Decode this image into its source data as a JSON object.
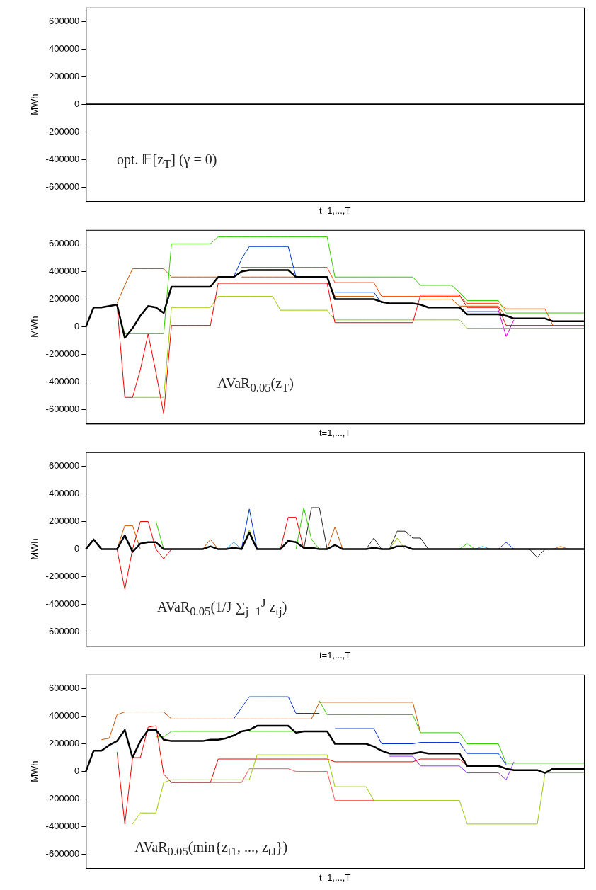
{
  "chart_data": [
    {
      "type": "line",
      "xlabel": "t=1,...,T",
      "ylabel": "MWh",
      "ylim": [
        -700000,
        700000
      ],
      "yticks": [
        -600000,
        -400000,
        -200000,
        0,
        200000,
        400000,
        600000
      ],
      "tick_labels": "y",
      "annotations": [
        "opt. 𝔼[z$_{T}$] (γ = 0)"
      ],
      "categories": [
        null,
        null,
        null,
        null,
        null,
        null,
        null,
        null,
        null,
        null,
        null,
        null,
        null,
        null,
        null,
        null,
        null,
        null,
        null,
        null,
        null,
        null,
        null,
        null,
        null,
        null,
        null,
        null,
        null,
        null,
        null,
        null,
        null,
        null,
        null,
        null,
        null,
        null,
        null,
        null,
        null,
        null,
        null,
        null,
        null,
        null,
        null,
        null,
        null,
        null,
        null,
        null,
        null,
        null,
        null,
        null,
        null,
        null,
        null,
        null,
        null,
        null,
        null,
        null,
        null
      ],
      "series": [
        {
          "color": "#000000",
          "values": [
            0,
            0,
            0,
            0,
            0,
            0,
            0,
            0,
            0,
            0,
            0,
            0,
            0,
            0,
            0,
            0,
            0,
            0,
            0,
            0,
            0,
            0,
            0,
            0,
            0,
            0,
            0,
            0,
            0,
            0,
            0,
            0,
            0,
            0,
            0,
            0,
            0,
            0,
            0,
            0,
            0,
            0,
            0,
            0,
            0,
            0,
            0,
            0,
            0,
            0,
            0,
            0,
            0,
            0,
            0,
            0,
            0,
            0,
            0,
            0,
            0,
            0,
            0,
            0,
            0
          ]
        }
      ]
    },
    {
      "type": "line",
      "xlabel": "t=1,...,T",
      "ylabel": "MWh",
      "ylim": [
        -700000,
        700000
      ],
      "yticks": [
        -600000,
        -400000,
        -200000,
        0,
        200000,
        400000,
        600000
      ],
      "tick_labels": "y",
      "annotations": [
        "AVaR$_{0.05}$(z$_{T}$)"
      ],
      "categories": [
        null,
        null,
        null,
        null,
        null,
        null,
        null,
        null,
        null,
        null,
        null,
        null,
        null,
        null,
        null,
        null,
        null,
        null,
        null,
        null,
        null,
        null,
        null,
        null,
        null,
        null,
        null,
        null,
        null,
        null,
        null,
        null,
        null,
        null,
        null,
        null,
        null,
        null,
        null,
        null,
        null,
        null,
        null,
        null,
        null,
        null,
        null,
        null,
        null,
        null,
        null,
        null,
        null,
        null,
        null,
        null,
        null,
        null,
        null,
        null,
        null,
        null,
        null,
        null,
        null
      ],
      "series": [
        {
          "color": "#000000",
          "values": [
            0,
            140000,
            140000,
            150000,
            160000,
            -80000,
            -10000,
            80000,
            150000,
            140000,
            100000,
            290000,
            290000,
            290000,
            290000,
            290000,
            290000,
            360000,
            360000,
            360000,
            400000,
            410000,
            410000,
            410000,
            410000,
            410000,
            410000,
            360000,
            360000,
            360000,
            360000,
            360000,
            200000,
            200000,
            200000,
            200000,
            200000,
            200000,
            180000,
            170000,
            170000,
            170000,
            170000,
            160000,
            140000,
            140000,
            140000,
            140000,
            140000,
            90000,
            90000,
            90000,
            90000,
            90000,
            80000,
            60000,
            60000,
            60000,
            60000,
            60000,
            40000,
            40000,
            40000,
            40000,
            40000
          ]
        },
        {
          "color": "#33cc00",
          "values": [
            null,
            null,
            null,
            null,
            150000,
            -50000,
            -50000,
            -50000,
            -50000,
            -50000,
            -50000,
            600000,
            600000,
            600000,
            600000,
            600000,
            600000,
            650000,
            650000,
            650000,
            650000,
            650000,
            650000,
            650000,
            650000,
            650000,
            650000,
            650000,
            650000,
            650000,
            650000,
            650000,
            360000,
            360000,
            360000,
            360000,
            360000,
            360000,
            360000,
            360000,
            360000,
            360000,
            360000,
            300000,
            300000,
            300000,
            300000,
            300000,
            250000,
            190000,
            190000,
            190000,
            190000,
            190000,
            100000,
            100000,
            100000,
            100000,
            100000,
            100000,
            100000,
            100000,
            100000,
            100000,
            100000
          ]
        },
        {
          "color": "#cc5500",
          "values": [
            null,
            null,
            null,
            null,
            170000,
            300000,
            420000,
            420000,
            420000,
            420000,
            420000,
            360000,
            360000,
            360000,
            360000,
            360000,
            360000,
            360000,
            null,
            null,
            360000,
            360000,
            360000,
            360000,
            360000,
            360000,
            360000,
            360000,
            null,
            null,
            null,
            360000,
            220000,
            220000,
            220000,
            220000,
            220000,
            220000,
            null,
            null,
            null,
            null,
            null,
            200000,
            200000,
            200000,
            200000,
            200000,
            150000,
            150000,
            150000,
            150000,
            150000,
            150000,
            70000,
            null,
            null,
            null,
            null,
            null,
            null,
            null,
            null,
            null,
            null
          ]
        },
        {
          "color": "#0033cc",
          "values": [
            null,
            null,
            null,
            null,
            null,
            null,
            null,
            null,
            null,
            null,
            null,
            null,
            null,
            null,
            null,
            null,
            null,
            null,
            null,
            360000,
            490000,
            580000,
            580000,
            580000,
            580000,
            580000,
            580000,
            360000,
            null,
            null,
            null,
            null,
            250000,
            250000,
            250000,
            250000,
            250000,
            250000,
            170000,
            null,
            null,
            null,
            null,
            null,
            null,
            null,
            null,
            null,
            null,
            110000,
            110000,
            110000,
            110000,
            110000,
            null,
            null,
            null,
            null,
            null,
            null,
            null,
            null,
            null,
            null,
            null
          ]
        },
        {
          "color": "#ee0000",
          "values": [
            null,
            null,
            null,
            null,
            160000,
            -510000,
            -510000,
            -310000,
            -50000,
            -330000,
            -630000,
            10000,
            10000,
            10000,
            10000,
            10000,
            10000,
            315000,
            315000,
            315000,
            315000,
            315000,
            315000,
            315000,
            315000,
            315000,
            315000,
            315000,
            315000,
            315000,
            315000,
            315000,
            30000,
            30000,
            30000,
            30000,
            30000,
            30000,
            30000,
            30000,
            30000,
            30000,
            30000,
            230000,
            230000,
            230000,
            230000,
            230000,
            230000,
            140000,
            140000,
            140000,
            140000,
            140000,
            10000,
            10000,
            10000,
            10000,
            10000,
            10000,
            10000,
            10000,
            10000,
            10000,
            10000
          ]
        },
        {
          "color": "#ff4400",
          "values": [
            null,
            null,
            null,
            null,
            null,
            null,
            null,
            null,
            null,
            null,
            null,
            null,
            null,
            null,
            null,
            null,
            null,
            null,
            null,
            null,
            430000,
            430000,
            430000,
            430000,
            430000,
            430000,
            430000,
            430000,
            430000,
            430000,
            430000,
            430000,
            320000,
            320000,
            320000,
            320000,
            320000,
            320000,
            220000,
            220000,
            220000,
            220000,
            220000,
            220000,
            220000,
            220000,
            220000,
            220000,
            220000,
            170000,
            170000,
            170000,
            170000,
            170000,
            130000,
            130000,
            130000,
            130000,
            130000,
            130000,
            10000,
            null,
            null,
            null,
            null
          ]
        },
        {
          "color": "#99cc00",
          "values": [
            null,
            null,
            null,
            null,
            null,
            null,
            -510000,
            -510000,
            -510000,
            -510000,
            -510000,
            140000,
            140000,
            140000,
            140000,
            140000,
            140000,
            220000,
            220000,
            220000,
            220000,
            220000,
            220000,
            220000,
            220000,
            120000,
            120000,
            120000,
            120000,
            120000,
            120000,
            120000,
            50000,
            50000,
            50000,
            50000,
            50000,
            50000,
            50000,
            50000,
            50000,
            50000,
            50000,
            50000,
            50000,
            50000,
            50000,
            50000,
            50000,
            -10000,
            -10000,
            -10000,
            -10000,
            -10000,
            -10000,
            -10000,
            -10000,
            -10000,
            -10000,
            -10000,
            -10000,
            -10000,
            -10000,
            -10000,
            -10000
          ]
        },
        {
          "color": "#cc00cc",
          "values": [
            null,
            null,
            null,
            null,
            null,
            null,
            null,
            null,
            null,
            null,
            null,
            null,
            null,
            null,
            null,
            null,
            null,
            null,
            null,
            null,
            null,
            null,
            null,
            null,
            null,
            null,
            null,
            null,
            null,
            null,
            null,
            null,
            null,
            null,
            null,
            null,
            null,
            null,
            null,
            null,
            null,
            null,
            null,
            null,
            null,
            null,
            null,
            null,
            null,
            null,
            null,
            null,
            null,
            120000,
            -70000,
            50000,
            null,
            null,
            null,
            null,
            null,
            null,
            null,
            null,
            null
          ]
        }
      ]
    },
    {
      "type": "line",
      "xlabel": "t=1,...,T",
      "ylabel": "MWh",
      "ylim": [
        -700000,
        700000
      ],
      "yticks": [
        -600000,
        -400000,
        -200000,
        0,
        200000,
        400000,
        600000
      ],
      "tick_labels": "y",
      "annotations": [
        "AVaR$_{0.05}$(1/J ∑$_{j=1}$$^{J}$ z$_{tj}$)"
      ],
      "categories": [
        null,
        null,
        null,
        null,
        null,
        null,
        null,
        null,
        null,
        null,
        null,
        null,
        null,
        null,
        null,
        null,
        null,
        null,
        null,
        null,
        null,
        null,
        null,
        null,
        null,
        null,
        null,
        null,
        null,
        null,
        null,
        null,
        null,
        null,
        null,
        null,
        null,
        null,
        null,
        null,
        null,
        null,
        null,
        null,
        null,
        null,
        null,
        null,
        null,
        null,
        null,
        null,
        null,
        null,
        null,
        null,
        null,
        null,
        null,
        null,
        null,
        null,
        null,
        null,
        null
      ],
      "series": [
        {
          "color": "#000000",
          "values": [
            0,
            70000,
            0,
            0,
            0,
            100000,
            -20000,
            40000,
            50000,
            50000,
            0,
            0,
            0,
            0,
            0,
            0,
            20000,
            0,
            0,
            10000,
            0,
            120000,
            0,
            0,
            0,
            0,
            60000,
            50000,
            10000,
            10000,
            0,
            0,
            30000,
            0,
            0,
            0,
            0,
            10000,
            0,
            0,
            20000,
            20000,
            0,
            0,
            0,
            0,
            0,
            0,
            0,
            0,
            0,
            0,
            0,
            0,
            0,
            0,
            0,
            0,
            0,
            0,
            0,
            0,
            0,
            0,
            0
          ]
        },
        {
          "color": "#cc5500",
          "values": [
            null,
            null,
            null,
            null,
            0,
            170000,
            170000,
            0,
            null,
            null,
            null,
            null,
            null,
            null,
            null,
            0,
            70000,
            0,
            null,
            null,
            null,
            null,
            null,
            null,
            null,
            null,
            null,
            null,
            null,
            null,
            null,
            0,
            160000,
            0,
            null,
            null,
            null,
            null,
            null,
            null,
            null,
            null,
            null,
            null,
            null,
            null,
            null,
            null,
            null,
            null,
            null,
            null,
            null,
            null,
            null,
            null,
            null,
            null,
            null,
            null,
            null,
            null,
            null,
            null,
            null
          ]
        },
        {
          "color": "#ee0000",
          "values": [
            null,
            null,
            null,
            null,
            0,
            -290000,
            0,
            200000,
            200000,
            0,
            -70000,
            0,
            null,
            null,
            null,
            null,
            null,
            null,
            null,
            null,
            null,
            null,
            null,
            null,
            null,
            0,
            230000,
            230000,
            0,
            null,
            null,
            null,
            null,
            null,
            null,
            null,
            null,
            null,
            null,
            null,
            null,
            null,
            null,
            null,
            null,
            null,
            null,
            null,
            null,
            null,
            null,
            null,
            null,
            null,
            null,
            null,
            null,
            null,
            null,
            null,
            null,
            null,
            null,
            null,
            null
          ]
        },
        {
          "color": "#33cc00",
          "values": [
            null,
            null,
            null,
            null,
            null,
            null,
            null,
            null,
            null,
            200000,
            0,
            null,
            null,
            null,
            null,
            null,
            null,
            null,
            null,
            null,
            null,
            null,
            null,
            null,
            null,
            null,
            null,
            0,
            300000,
            70000,
            0,
            null,
            null,
            null,
            null,
            null,
            null,
            null,
            null,
            null,
            null,
            null,
            null,
            null,
            null,
            null,
            null,
            null,
            0,
            40000,
            0,
            null,
            null,
            null,
            null,
            null,
            null,
            null,
            null,
            null,
            null,
            null,
            null,
            null,
            null
          ]
        },
        {
          "color": "#222222",
          "values": [
            null,
            null,
            null,
            null,
            null,
            null,
            null,
            null,
            null,
            null,
            null,
            null,
            null,
            null,
            null,
            null,
            null,
            null,
            null,
            null,
            null,
            null,
            null,
            null,
            null,
            null,
            null,
            null,
            0,
            300000,
            300000,
            0,
            null,
            null,
            null,
            null,
            0,
            80000,
            0,
            0,
            130000,
            130000,
            80000,
            80000,
            0,
            null,
            null,
            null,
            null,
            null,
            null,
            null,
            null,
            null,
            null,
            null,
            null,
            0,
            -60000,
            0,
            null,
            null,
            null,
            null,
            null
          ]
        },
        {
          "color": "#0033cc",
          "values": [
            null,
            null,
            null,
            null,
            null,
            null,
            null,
            null,
            null,
            null,
            null,
            null,
            null,
            null,
            null,
            null,
            null,
            null,
            null,
            null,
            0,
            290000,
            0,
            null,
            null,
            null,
            null,
            null,
            null,
            null,
            null,
            null,
            null,
            null,
            null,
            null,
            null,
            null,
            null,
            null,
            null,
            null,
            null,
            null,
            null,
            null,
            null,
            null,
            null,
            null,
            null,
            null,
            null,
            0,
            50000,
            0,
            null,
            null,
            null,
            null,
            null,
            null,
            null,
            null,
            null
          ]
        },
        {
          "color": "#33aaff",
          "values": [
            null,
            null,
            null,
            null,
            null,
            null,
            null,
            null,
            null,
            null,
            null,
            null,
            null,
            null,
            null,
            null,
            null,
            null,
            0,
            50000,
            0,
            null,
            null,
            null,
            null,
            null,
            null,
            null,
            null,
            null,
            null,
            null,
            null,
            null,
            null,
            null,
            null,
            null,
            null,
            null,
            null,
            null,
            null,
            null,
            null,
            null,
            null,
            null,
            null,
            null,
            0,
            20000,
            0,
            null,
            null,
            null,
            null,
            null,
            null,
            null,
            null,
            null,
            null,
            null,
            null
          ]
        },
        {
          "color": "#99cc00",
          "values": [
            null,
            null,
            null,
            null,
            null,
            null,
            null,
            null,
            null,
            null,
            null,
            null,
            null,
            null,
            null,
            null,
            null,
            null,
            null,
            null,
            0,
            140000,
            0,
            null,
            null,
            null,
            null,
            null,
            null,
            null,
            null,
            null,
            null,
            null,
            null,
            null,
            null,
            null,
            null,
            0,
            80000,
            0,
            null,
            null,
            null,
            null,
            null,
            null,
            null,
            null,
            null,
            null,
            null,
            null,
            null,
            null,
            null,
            null,
            null,
            null,
            null,
            null,
            null,
            null,
            null
          ]
        },
        {
          "color": "#ff6600",
          "values": [
            null,
            null,
            null,
            null,
            null,
            null,
            null,
            null,
            null,
            null,
            null,
            null,
            null,
            null,
            null,
            null,
            null,
            null,
            null,
            null,
            null,
            null,
            null,
            null,
            null,
            null,
            null,
            null,
            null,
            null,
            null,
            null,
            null,
            null,
            null,
            null,
            null,
            null,
            null,
            null,
            null,
            null,
            null,
            null,
            null,
            null,
            null,
            null,
            null,
            null,
            null,
            null,
            null,
            null,
            null,
            null,
            null,
            null,
            null,
            null,
            0,
            20000,
            0,
            null,
            null
          ]
        }
      ]
    },
    {
      "type": "line",
      "xlabel": "t=1,...,T",
      "ylabel": "MWh",
      "ylim": [
        -700000,
        700000
      ],
      "yticks": [
        -600000,
        -400000,
        -200000,
        0,
        200000,
        400000,
        600000
      ],
      "tick_labels": "y",
      "annotations": [
        "AVaR$_{0.05}$(min{z$_{t1}$, ..., z$_{tJ}$})"
      ],
      "categories": [
        null,
        null,
        null,
        null,
        null,
        null,
        null,
        null,
        null,
        null,
        null,
        null,
        null,
        null,
        null,
        null,
        null,
        null,
        null,
        null,
        null,
        null,
        null,
        null,
        null,
        null,
        null,
        null,
        null,
        null,
        null,
        null,
        null,
        null,
        null,
        null,
        null,
        null,
        null,
        null,
        null,
        null,
        null,
        null,
        null,
        null,
        null,
        null,
        null,
        null,
        null,
        null,
        null,
        null,
        null,
        null,
        null,
        null,
        null,
        null,
        null,
        null,
        null,
        null,
        null
      ],
      "series": [
        {
          "color": "#000000",
          "values": [
            0,
            150000,
            150000,
            190000,
            220000,
            300000,
            100000,
            220000,
            300000,
            300000,
            230000,
            220000,
            220000,
            220000,
            220000,
            220000,
            230000,
            230000,
            240000,
            260000,
            290000,
            300000,
            330000,
            330000,
            330000,
            330000,
            330000,
            280000,
            290000,
            290000,
            290000,
            290000,
            200000,
            200000,
            200000,
            200000,
            200000,
            180000,
            150000,
            130000,
            130000,
            130000,
            130000,
            140000,
            130000,
            130000,
            130000,
            130000,
            130000,
            40000,
            40000,
            40000,
            40000,
            40000,
            20000,
            10000,
            10000,
            10000,
            10000,
            -10000,
            20000,
            20000,
            20000,
            20000,
            20000
          ]
        },
        {
          "color": "#cc5500",
          "values": [
            null,
            null,
            230000,
            240000,
            410000,
            430000,
            430000,
            430000,
            430000,
            430000,
            430000,
            380000,
            380000,
            380000,
            380000,
            380000,
            380000,
            380000,
            380000,
            380000,
            380000,
            380000,
            380000,
            380000,
            380000,
            380000,
            380000,
            380000,
            380000,
            380000,
            500000,
            500000,
            500000,
            500000,
            500000,
            500000,
            500000,
            500000,
            500000,
            500000,
            500000,
            500000,
            500000,
            280000,
            null,
            null,
            null,
            null,
            null,
            null,
            null,
            null,
            null,
            null,
            null,
            null,
            null,
            null,
            null,
            null,
            null,
            null,
            null,
            null,
            null
          ]
        },
        {
          "color": "#0033cc",
          "values": [
            null,
            null,
            null,
            null,
            null,
            null,
            null,
            null,
            null,
            null,
            null,
            null,
            null,
            null,
            null,
            null,
            null,
            null,
            null,
            380000,
            460000,
            540000,
            540000,
            540000,
            540000,
            540000,
            540000,
            420000,
            420000,
            420000,
            420000,
            null,
            310000,
            310000,
            310000,
            310000,
            310000,
            310000,
            200000,
            200000,
            200000,
            200000,
            200000,
            210000,
            210000,
            210000,
            210000,
            210000,
            210000,
            130000,
            130000,
            130000,
            130000,
            130000,
            50000,
            null,
            null,
            null,
            null,
            null,
            null,
            null,
            null,
            null,
            null
          ]
        },
        {
          "color": "#ee0000",
          "values": [
            null,
            null,
            null,
            null,
            140000,
            -380000,
            100000,
            100000,
            320000,
            330000,
            -20000,
            -80000,
            -80000,
            -80000,
            -80000,
            -80000,
            -80000,
            90000,
            90000,
            90000,
            90000,
            90000,
            90000,
            90000,
            90000,
            90000,
            90000,
            90000,
            90000,
            90000,
            90000,
            90000,
            70000,
            70000,
            70000,
            70000,
            70000,
            70000,
            70000,
            70000,
            70000,
            70000,
            70000,
            90000,
            90000,
            90000,
            90000,
            90000,
            90000,
            40000,
            null,
            null,
            null,
            null,
            null,
            null,
            null,
            null,
            null,
            null,
            null,
            null,
            null,
            null,
            null
          ]
        },
        {
          "color": "#ff5555",
          "values": [
            null,
            null,
            null,
            null,
            null,
            null,
            null,
            null,
            null,
            null,
            null,
            null,
            null,
            null,
            null,
            null,
            -80000,
            -80000,
            -80000,
            -80000,
            -80000,
            20000,
            20000,
            20000,
            20000,
            20000,
            20000,
            0,
            0,
            0,
            0,
            0,
            -210000,
            -210000,
            -210000,
            -210000,
            -210000,
            -210000,
            null,
            null,
            null,
            null,
            null,
            null,
            null,
            null,
            null,
            null,
            null,
            null,
            null,
            null,
            null,
            null,
            null,
            null,
            null,
            null,
            null,
            null,
            null,
            null,
            null,
            null,
            null
          ]
        },
        {
          "color": "#99cc00",
          "values": [
            null,
            null,
            null,
            null,
            null,
            null,
            -380000,
            -300000,
            -300000,
            -300000,
            -80000,
            -60000,
            -60000,
            -60000,
            -60000,
            -60000,
            -60000,
            -60000,
            -60000,
            -60000,
            -60000,
            -60000,
            120000,
            120000,
            120000,
            120000,
            120000,
            120000,
            120000,
            120000,
            120000,
            120000,
            -110000,
            -110000,
            -110000,
            -110000,
            -110000,
            -210000,
            -210000,
            -210000,
            -210000,
            -210000,
            -210000,
            -210000,
            -210000,
            -210000,
            -210000,
            -210000,
            -210000,
            -380000,
            -380000,
            -380000,
            -380000,
            -380000,
            -380000,
            -380000,
            -380000,
            -380000,
            -380000,
            -10000,
            -10000,
            -10000,
            -10000,
            -10000,
            -10000
          ]
        },
        {
          "color": "#33cc00",
          "values": [
            null,
            null,
            null,
            null,
            null,
            null,
            null,
            null,
            null,
            250000,
            250000,
            290000,
            290000,
            290000,
            290000,
            290000,
            290000,
            290000,
            290000,
            290000,
            null,
            290000,
            290000,
            290000,
            290000,
            290000,
            290000,
            290000,
            null,
            null,
            510000,
            410000,
            410000,
            410000,
            410000,
            410000,
            410000,
            410000,
            410000,
            410000,
            410000,
            410000,
            410000,
            280000,
            280000,
            280000,
            280000,
            280000,
            280000,
            200000,
            200000,
            200000,
            200000,
            200000,
            60000,
            60000,
            60000,
            60000,
            60000,
            60000,
            60000,
            60000,
            60000,
            60000,
            60000
          ]
        },
        {
          "color": "#9933ff",
          "values": [
            null,
            null,
            null,
            null,
            null,
            null,
            null,
            null,
            null,
            null,
            null,
            null,
            null,
            null,
            null,
            null,
            null,
            null,
            null,
            null,
            null,
            null,
            null,
            null,
            null,
            null,
            null,
            null,
            null,
            null,
            null,
            null,
            null,
            null,
            null,
            null,
            null,
            null,
            null,
            110000,
            110000,
            110000,
            110000,
            40000,
            40000,
            40000,
            40000,
            40000,
            40000,
            -10000,
            -10000,
            -10000,
            -10000,
            -10000,
            -60000,
            70000,
            null,
            null,
            null,
            null,
            null,
            null,
            null,
            null,
            null
          ]
        }
      ]
    }
  ]
}
